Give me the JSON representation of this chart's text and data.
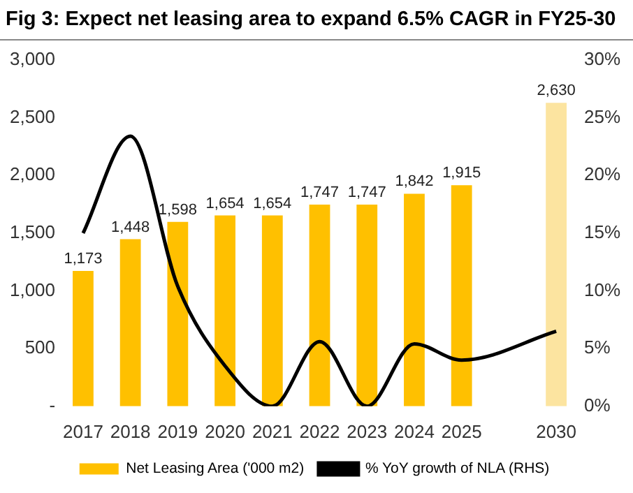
{
  "chart_data": {
    "type": "bar",
    "title": "Fig 3: Expect net leasing area to expand 6.5% CAGR in FY25-30",
    "categories": [
      "2017",
      "2018",
      "2019",
      "2020",
      "2021",
      "2022",
      "2023",
      "2024",
      "2025",
      null,
      "2030"
    ],
    "series": [
      {
        "name": "Net Leasing Area ('000 m2)",
        "color": "#ffc000",
        "colors": [
          "#ffc000",
          "#ffc000",
          "#ffc000",
          "#ffc000",
          "#ffc000",
          "#ffc000",
          "#ffc000",
          "#ffc000",
          "#ffc000",
          "#ffc000",
          "#fce4a0"
        ],
        "values": [
          1173,
          1448,
          1598,
          1654,
          1654,
          1747,
          1747,
          1842,
          1915,
          null,
          2630
        ],
        "value_labels": [
          "1,173",
          "1,448",
          "1,598",
          "1,654",
          "1,654",
          "1,747",
          "1,747",
          "1,842",
          "1,915",
          null,
          "2,630"
        ]
      },
      {
        "name": "% YoY growth of NLA (RHS)",
        "type": "line",
        "axis": "y2",
        "color": "#000000",
        "values": [
          15,
          23.4,
          10.4,
          3.5,
          0,
          5.6,
          0,
          5.4,
          4,
          null,
          6.5
        ]
      }
    ],
    "ylim": [
      0,
      3000
    ],
    "yticks": [
      {
        "value": 0,
        "label": "-"
      },
      {
        "value": 500,
        "label": "500"
      },
      {
        "value": 1000,
        "label": "1,000"
      },
      {
        "value": 1500,
        "label": "1,500"
      },
      {
        "value": 2000,
        "label": "2,000"
      },
      {
        "value": 2500,
        "label": "2,500"
      },
      {
        "value": 3000,
        "label": "3,000"
      }
    ],
    "y2lim": [
      0,
      30
    ],
    "y2ticks": [
      {
        "value": 0,
        "label": "0%"
      },
      {
        "value": 5,
        "label": "5%"
      },
      {
        "value": 10,
        "label": "10%"
      },
      {
        "value": 15,
        "label": "15%"
      },
      {
        "value": 20,
        "label": "20%"
      },
      {
        "value": 25,
        "label": "25%"
      },
      {
        "value": 30,
        "label": "30%"
      }
    ],
    "grid": false,
    "legend": "bottom",
    "marker": "none",
    "line_style": "solid"
  }
}
